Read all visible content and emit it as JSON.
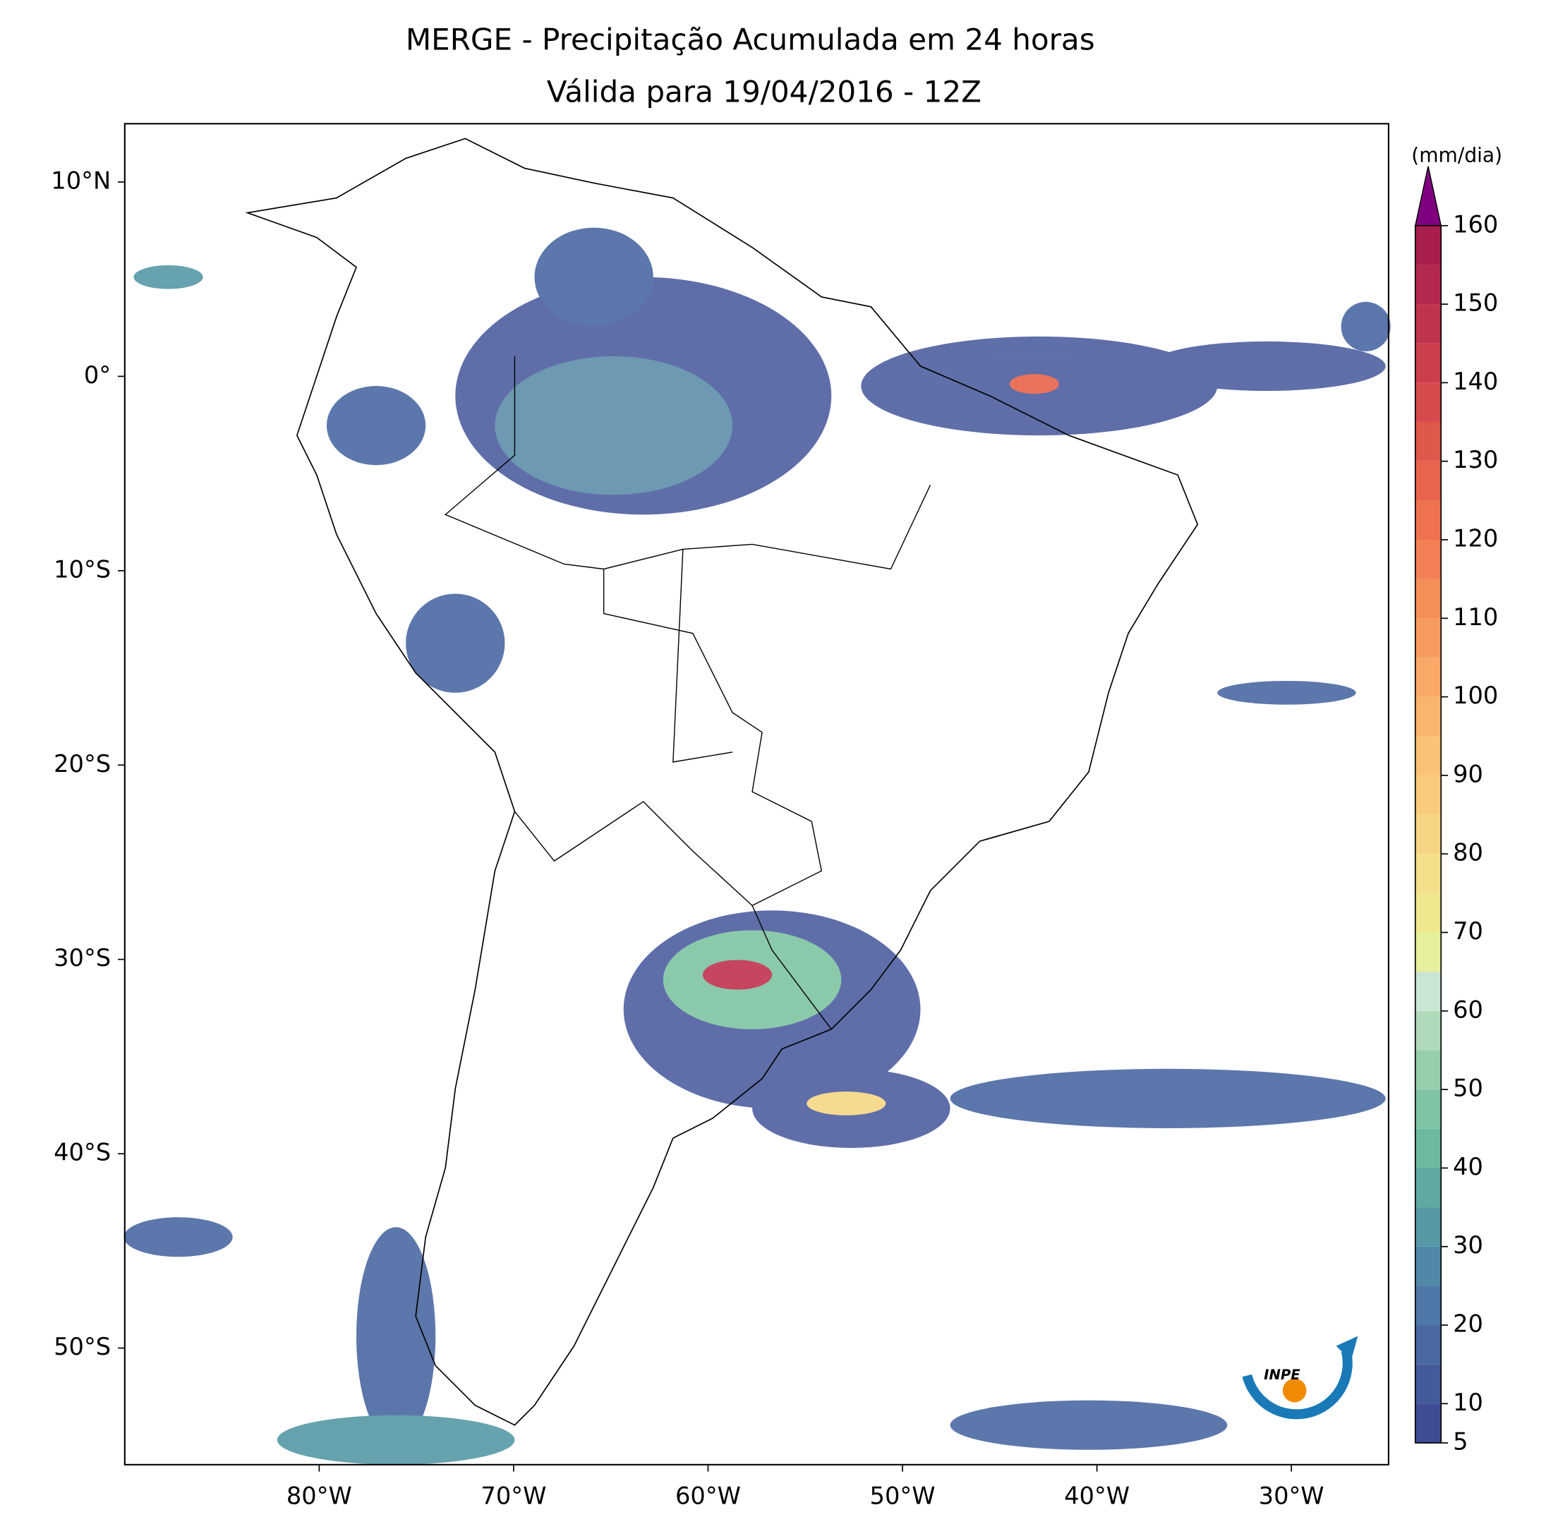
{
  "title": "MERGE - Precipitação Acumulada em 24 horas",
  "subtitle": "Válida para 19/04/2016 - 12Z",
  "map": {
    "xlim": [
      -90,
      -25
    ],
    "ylim": [
      -56,
      13
    ],
    "xticks": [
      {
        "value": -80,
        "label": "80°W"
      },
      {
        "value": -70,
        "label": "70°W"
      },
      {
        "value": -60,
        "label": "60°W"
      },
      {
        "value": -50,
        "label": "50°W"
      },
      {
        "value": -40,
        "label": "40°W"
      },
      {
        "value": -30,
        "label": "30°W"
      }
    ],
    "yticks": [
      {
        "value": 10,
        "label": "10°N"
      },
      {
        "value": 0,
        "label": "0°"
      },
      {
        "value": -10,
        "label": "10°S"
      },
      {
        "value": -20,
        "label": "20°S"
      },
      {
        "value": -30,
        "label": "30°S"
      },
      {
        "value": -40,
        "label": "40°S"
      },
      {
        "value": -50,
        "label": "50°S"
      }
    ]
  },
  "colorbar": {
    "label": "(mm/dia)",
    "lim": [
      5,
      160
    ],
    "levels": [
      5,
      10,
      15,
      20,
      25,
      30,
      35,
      40,
      45,
      50,
      55,
      60,
      65,
      70,
      75,
      80,
      85,
      90,
      95,
      100,
      105,
      110,
      115,
      120,
      125,
      130,
      135,
      140,
      145,
      150,
      155,
      160
    ],
    "colors": [
      "#3f4b94",
      "#455a9b",
      "#4a68a2",
      "#4e78a8",
      "#5188a8",
      "#5699a5",
      "#5eaaa2",
      "#6ab9a0",
      "#7fc4a3",
      "#96cfab",
      "#b0dbbb",
      "#cae6d2",
      "#e6f09a",
      "#eee88f",
      "#f3e08a",
      "#f6d684",
      "#f8cc7c",
      "#f9c276",
      "#f9b56e",
      "#f9aa68",
      "#f79c61",
      "#f58f5a",
      "#f28054",
      "#ee724f",
      "#e8644c",
      "#e0574b",
      "#d74a4c",
      "#cd3e4d",
      "#c0334e",
      "#b3284e",
      "#a71e4f"
    ],
    "extend_color": "#800080",
    "ticks": [
      5,
      10,
      20,
      30,
      40,
      50,
      60,
      70,
      80,
      90,
      100,
      110,
      120,
      130,
      140,
      150,
      160
    ]
  },
  "logo": "INPE"
}
